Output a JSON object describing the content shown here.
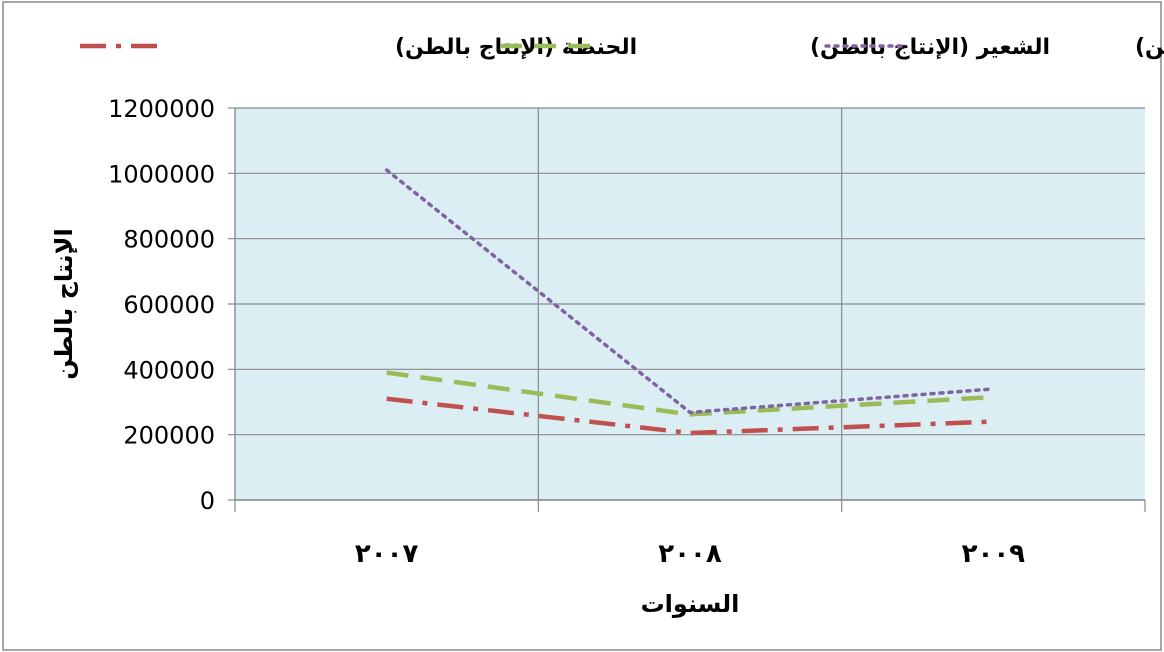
{
  "chart_data": {
    "type": "line",
    "categories": [
      "٢٠٠٧",
      "٢٠٠٨",
      "٢٠٠٩"
    ],
    "series": [
      {
        "name": "الحنطة (الإنتاج بالطن)",
        "color": "#C0504D",
        "dash": "dash-dot",
        "values": [
          310000,
          205000,
          240000
        ]
      },
      {
        "name": "الشعير (الإنتاج بالطن)",
        "color": "#9BBB59",
        "dash": "dash",
        "values": [
          390000,
          262000,
          315000
        ]
      },
      {
        "name": "الذرة الصفراء(الإنتاج بالطن)",
        "color": "#8064A2",
        "dash": "dot",
        "values": [
          1010000,
          268000,
          340000
        ]
      }
    ],
    "xlabel": "السنوات",
    "ylabel": "الإنتاج بالطن",
    "ylim": [
      0,
      1200000
    ],
    "yticks": [
      "0",
      "200000",
      "400000",
      "600000",
      "800000",
      "1000000",
      "1200000"
    ],
    "grid": true,
    "legend_position": "top",
    "plot_background": "#DBEEF4"
  }
}
